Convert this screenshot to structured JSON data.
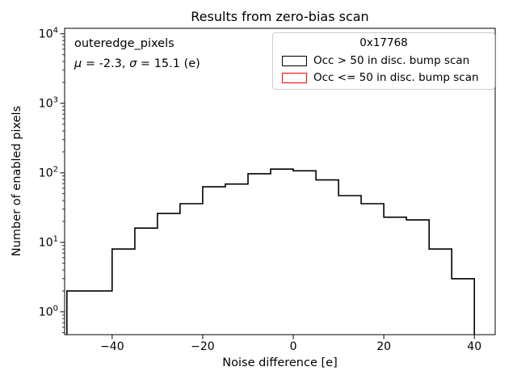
{
  "title": "Results from zero-bias scan",
  "axes": {
    "xlabel": "Noise difference [e]",
    "ylabel": "Number of enabled pixels"
  },
  "annotation": {
    "line1": "outeredge_pixels",
    "mu_symbol": "μ",
    "mu_text": " = -2.3, ",
    "sigma_symbol": "σ",
    "sigma_text": " = 15.1 (e)",
    "mu": -2.3,
    "sigma": 15.1
  },
  "legend": {
    "title": "0x17768",
    "border_color": "#cccccc",
    "entries": [
      {
        "label": "Occ > 50 in disc. bump scan",
        "color": "#000000"
      },
      {
        "label": "Occ <= 50 in disc. bump scan",
        "color": "#ff0000"
      }
    ]
  },
  "chart_data": {
    "type": "bar",
    "histtype": "step",
    "title": "Results from zero-bias scan",
    "xlabel": "Noise difference [e]",
    "ylabel": "Number of enabled pixels",
    "yscale": "log",
    "grid": false,
    "legend_position": "upper right",
    "xlim": [
      -50.5,
      44.6
    ],
    "ylim": [
      0.47,
      12000
    ],
    "bin_edges": [
      -50,
      -45,
      -40,
      -35,
      -30,
      -25,
      -20,
      -15,
      -10,
      -5,
      0,
      5,
      10,
      15,
      20,
      25,
      30,
      35,
      40
    ],
    "series": [
      {
        "name": "Occ > 50 in disc. bump scan",
        "color": "#000000",
        "counts": [
          2,
          2,
          8,
          16,
          26,
          36,
          63,
          69,
          97,
          113,
          107,
          79,
          47,
          36,
          23,
          21,
          8,
          3
        ]
      },
      {
        "name": "Occ <= 50 in disc. bump scan",
        "color": "#ff0000",
        "counts": [
          0,
          0,
          0,
          0,
          0,
          0,
          0,
          0,
          0,
          0,
          0,
          0,
          0,
          0,
          0,
          0,
          0,
          0
        ]
      }
    ],
    "x_ticks": [
      -40,
      -20,
      0,
      20,
      40
    ],
    "x_tick_labels": [
      "−40",
      "−20",
      "0",
      "20",
      "40"
    ],
    "y_major_ticks": [
      1,
      10,
      100,
      1000,
      10000
    ],
    "y_tick_exponents": [
      0,
      1,
      2,
      3,
      4
    ]
  }
}
